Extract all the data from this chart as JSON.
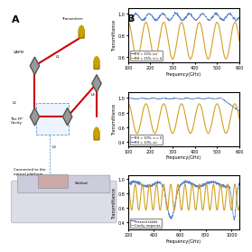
{
  "panel_A_label": "A",
  "panel_B_label": "B",
  "plot1_legend": [
    "RH = 15%, air",
    "RH = 15%, n = 4"
  ],
  "plot2_legend": [
    "RH = 10%, n = 0",
    "RH = 10%, air"
  ],
  "plot3_legend": [
    "Pressed tablet",
    "Cavity response"
  ],
  "plot1_xlabel": "Frequency(GHz)",
  "plot2_xlabel": "Frequency(GHz)",
  "plot3_xlabel": "Frequency(GHz)",
  "plot1_ylabel": "Transmittance",
  "plot2_ylabel": "Transmittance",
  "plot3_ylabel": "Transmittance",
  "plot1_xrange": [
    100,
    600
  ],
  "plot2_xrange": [
    100,
    600
  ],
  "plot3_xrange": [
    200,
    1060
  ],
  "plot1_xticks": [
    100,
    200,
    300,
    400,
    500,
    600
  ],
  "plot2_xticks": [
    100,
    200,
    300,
    400,
    500,
    600
  ],
  "plot3_xticks": [
    200,
    400,
    600,
    800,
    1000
  ],
  "color_blue": "#4472C4",
  "color_orange": "#D4A020",
  "color_red": "#CC0000",
  "bg_color": "#FFFFFF"
}
